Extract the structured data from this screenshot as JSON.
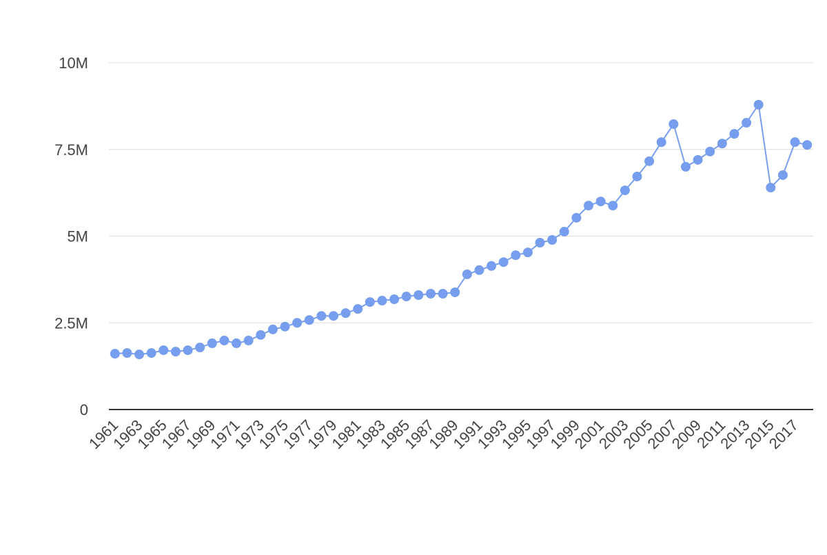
{
  "chart_data": {
    "type": "line",
    "x": [
      1961,
      1962,
      1963,
      1964,
      1965,
      1966,
      1967,
      1968,
      1969,
      1970,
      1971,
      1972,
      1973,
      1974,
      1975,
      1976,
      1977,
      1978,
      1979,
      1980,
      1981,
      1982,
      1983,
      1984,
      1985,
      1986,
      1987,
      1988,
      1989,
      1990,
      1991,
      1992,
      1993,
      1994,
      1995,
      1996,
      1997,
      1998,
      1999,
      2000,
      2001,
      2002,
      2003,
      2004,
      2005,
      2006,
      2007,
      2008,
      2009,
      2010,
      2011,
      2012,
      2013,
      2014,
      2015,
      2016,
      2017,
      2018
    ],
    "series": [
      {
        "color": "#779eee",
        "values": [
          1610000,
          1630000,
          1590000,
          1630000,
          1710000,
          1670000,
          1710000,
          1790000,
          1910000,
          1990000,
          1910000,
          1990000,
          2150000,
          2310000,
          2390000,
          2500000,
          2580000,
          2700000,
          2700000,
          2780000,
          2900000,
          3100000,
          3140000,
          3180000,
          3260000,
          3300000,
          3340000,
          3340000,
          3380000,
          3900000,
          4020000,
          4140000,
          4250000,
          4450000,
          4530000,
          4810000,
          4890000,
          5130000,
          5530000,
          5880000,
          6000000,
          5880000,
          6320000,
          6720000,
          7160000,
          7710000,
          8230000,
          7000000,
          7200000,
          7440000,
          7670000,
          7950000,
          8270000,
          8790000,
          6400000,
          6760000,
          7710000,
          7630000
        ]
      }
    ],
    "xlim": [
      1960.5,
      2018.5
    ],
    "xticks": [
      1961,
      1963,
      1965,
      1967,
      1969,
      1971,
      1973,
      1975,
      1977,
      1979,
      1981,
      1983,
      1985,
      1987,
      1989,
      1991,
      1993,
      1995,
      1997,
      1999,
      2001,
      2003,
      2005,
      2007,
      2009,
      2011,
      2013,
      2015,
      2017
    ],
    "ylim": [
      0,
      10000000
    ],
    "yticks": [
      0,
      {
        "value": 2500000,
        "label": "2.5M"
      },
      {
        "value": 5000000,
        "label": "5M"
      },
      {
        "value": 7500000,
        "label": "7.5M"
      },
      {
        "value": 10000000,
        "label": "10M"
      }
    ],
    "grid": true
  }
}
